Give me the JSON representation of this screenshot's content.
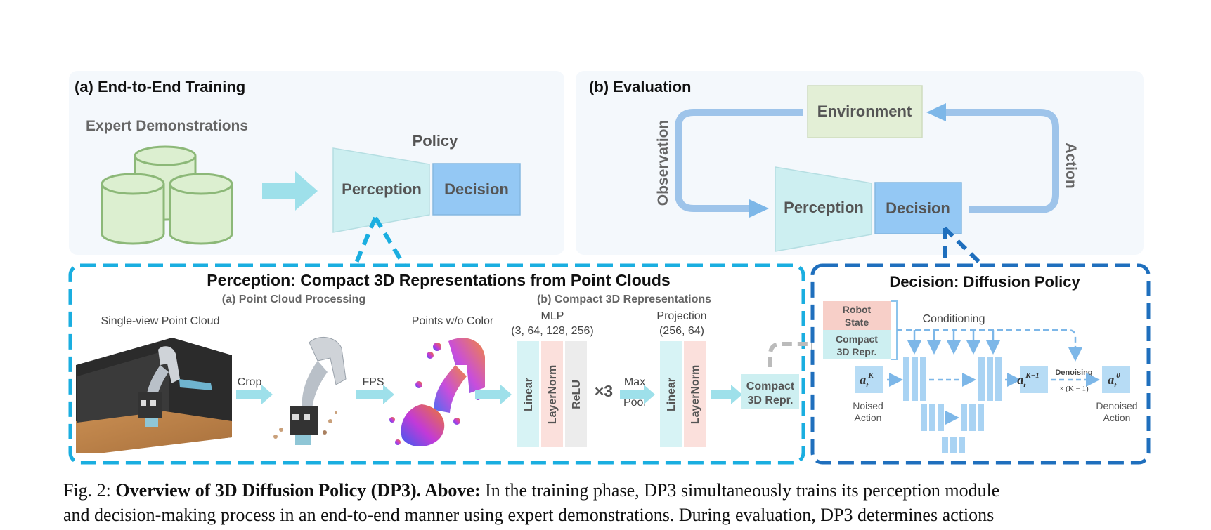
{
  "training": {
    "heading": "(a) End-to-End Training",
    "expert_label": "Expert Demonstrations",
    "policy_label": "Policy",
    "perception_label": "Perception",
    "decision_label": "Decision"
  },
  "evaluation": {
    "heading": "(b) Evaluation",
    "environment_label": "Environment",
    "observation_label": "Observation",
    "action_label": "Action",
    "perception_label": "Perception",
    "decision_label": "Decision"
  },
  "perception_panel": {
    "title": "Perception: Compact 3D Representations from Point Clouds",
    "sub_a": "(a) Point Cloud Processing",
    "sub_b": "(b) Compact 3D Representations",
    "single_view_label": "Single-view Point Cloud",
    "crop_label": "Crop",
    "fps_label": "FPS",
    "points_label": "Points w/o Color",
    "mlp_label": "MLP",
    "mlp_dims": "(3, 64, 128, 256)",
    "linear_label": "Linear",
    "layernorm_label": "LayerNorm",
    "relu_label": "ReLU",
    "times3": "×3",
    "maxpool_1": "Max",
    "maxpool_2": "Pool",
    "projection_label": "Projection",
    "projection_dims": "(256, 64)",
    "compact_1": "Compact",
    "compact_2": "3D Repr."
  },
  "decision_panel": {
    "title": "Decision: Diffusion Policy",
    "robot_state_1": "Robot",
    "robot_state_2": "State",
    "compact_1": "Compact",
    "compact_2": "3D Repr.",
    "conditioning_label": "Conditioning",
    "noised_1": "Noised",
    "noised_2": "Action",
    "denoised_1": "Denoised",
    "denoised_2": "Action",
    "denoising_label": "Denoising",
    "denoising_count": "× (K − 1)",
    "aK_base": "a",
    "aK_sub": "t",
    "aK_sup": "K",
    "aK1_sup": "K−1",
    "a0_sup": "0"
  },
  "caption": {
    "fig_label": "Fig. 2: ",
    "bold_title": "Overview of 3D Diffusion Policy (DP3). Above:",
    "line1_rest": " In the training phase, DP3 simultaneously trains its perception module",
    "line2": "and decision-making process in an end-to-end manner using expert demonstrations. During evaluation, DP3 determines actions"
  },
  "colors": {
    "panel_bg": "#f4f8fc",
    "perception_fill": "#cdeff1",
    "decision_fill": "#94c8f4",
    "environment_fill": "#e3efd6",
    "cylinder_fill": "#dcefd0",
    "cylinder_stroke": "#8cb878",
    "arrow_light": "#9ee0ea",
    "loop_arrow": "#9ec4ea",
    "dashed_cyan": "#1aaee0",
    "dashed_blue": "#1f6fbd",
    "robot_state_fill": "#f7cfc8",
    "linear_fill": "#d7f3f5",
    "layernorm_fill": "#fbe0dc",
    "relu_fill": "#ececec",
    "unet_block": "#a9d3f3",
    "action_box": "#b7dcf5",
    "text_dark": "#555555"
  }
}
